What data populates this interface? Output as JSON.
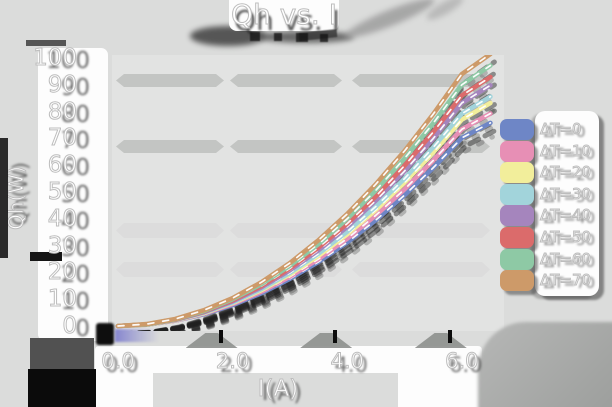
{
  "title": "Qh vs. I",
  "axes": {
    "y_label": "Qh(W)",
    "x_label": "I(A)",
    "y_ticks": [
      {
        "label": "100",
        "value": 100
      },
      {
        "label": "90",
        "value": 90
      },
      {
        "label": "80",
        "value": 80
      },
      {
        "label": "70",
        "value": 70
      },
      {
        "label": "60",
        "value": 60
      },
      {
        "label": "50",
        "value": 50
      },
      {
        "label": "40",
        "value": 40
      },
      {
        "label": "30",
        "value": 30
      },
      {
        "label": "20",
        "value": 20
      },
      {
        "label": "10",
        "value": 10
      },
      {
        "label": "0",
        "value": 0
      }
    ],
    "x_ticks": [
      {
        "label": "0.0",
        "value": 0
      },
      {
        "label": "2.0",
        "value": 2
      },
      {
        "label": "4.0",
        "value": 4
      },
      {
        "label": "6.0",
        "value": 6
      }
    ]
  },
  "legend": {
    "items": [
      {
        "label": "ΔT=0",
        "color": "#6e86c6"
      },
      {
        "label": "ΔT=10",
        "color": "#e78fb5"
      },
      {
        "label": "ΔT=20",
        "color": "#f2ee9b"
      },
      {
        "label": "ΔT=30",
        "color": "#a2d4db"
      },
      {
        "label": "ΔT=40",
        "color": "#a585bd"
      },
      {
        "label": "ΔT=50",
        "color": "#db6b6b"
      },
      {
        "label": "ΔT=60",
        "color": "#8ec9a5"
      },
      {
        "label": "ΔT=70",
        "color": "#cd9a69"
      }
    ]
  },
  "colors": {
    "background": "#dbdcdb",
    "plot_background": "#e2e3e2",
    "grid_band": "#c3c5c3",
    "grid_band_faint": "#d9dad9",
    "panel": "#fdfdfd",
    "text": "#ffffff",
    "text_outline": "#bdbdbd",
    "shadow": "#2e2e2e"
  },
  "chart_data": {
    "type": "line",
    "title": "Qh vs. I",
    "xlabel": "I(A)",
    "ylabel": "Qh(W)",
    "xlim": [
      0,
      6.9
    ],
    "ylim": [
      0,
      100
    ],
    "x_tick_values": [
      0.0,
      2.0,
      4.0,
      6.0
    ],
    "y_tick_values": [
      0,
      10,
      20,
      30,
      40,
      50,
      60,
      70,
      80,
      90,
      100
    ],
    "grid": "horizontal-bands",
    "legend_position": "right",
    "marker": "white-dash-on-line",
    "x": [
      0,
      0.5,
      1,
      1.5,
      2,
      2.5,
      3,
      3.5,
      4,
      4.5,
      5,
      5.5,
      6,
      6.5
    ],
    "series": [
      {
        "name": "ΔT=0",
        "color": "#6e86c6",
        "values": [
          0,
          0.5,
          2.0,
          4.4,
          7.8,
          12.2,
          17.6,
          23.9,
          31.2,
          39.5,
          48.8,
          59.0,
          70.2,
          75.8
        ]
      },
      {
        "name": "ΔT=10",
        "color": "#e78fb5",
        "values": [
          0,
          0.5,
          2.0,
          4.6,
          8.2,
          12.8,
          18.4,
          25.0,
          32.6,
          41.3,
          51.0,
          61.7,
          73.4,
          79.3
        ]
      },
      {
        "name": "ΔT=20",
        "color": "#f2ee9b",
        "values": [
          0,
          0.5,
          2.1,
          4.8,
          8.6,
          13.4,
          19.3,
          26.2,
          34.2,
          43.3,
          53.5,
          64.7,
          77.0,
          83.2
        ]
      },
      {
        "name": "ΔT=30",
        "color": "#a2d4db",
        "values": [
          0,
          0.6,
          2.2,
          5.0,
          8.8,
          13.8,
          19.8,
          27.0,
          35.2,
          44.6,
          55.0,
          66.6,
          79.2,
          85.6
        ]
      },
      {
        "name": "ΔT=40",
        "color": "#a585bd",
        "values": [
          0,
          0.6,
          2.3,
          5.2,
          9.2,
          14.4,
          20.8,
          28.3,
          37.0,
          46.8,
          57.8,
          69.9,
          83.2,
          89.8
        ]
      },
      {
        "name": "ΔT=50",
        "color": "#db6b6b",
        "values": [
          0,
          0.6,
          2.4,
          5.4,
          9.6,
          14.9,
          21.5,
          29.3,
          38.2,
          48.4,
          59.8,
          72.3,
          86.0,
          92.9
        ]
      },
      {
        "name": "ΔT=60",
        "color": "#8ec9a5",
        "values": [
          0,
          0.6,
          2.5,
          5.6,
          10.0,
          15.6,
          22.5,
          30.6,
          40.0,
          50.6,
          62.5,
          75.6,
          90.0,
          97.2
        ]
      },
      {
        "name": "ΔT=70",
        "color": "#cd9a69",
        "values": [
          0,
          0.7,
          2.6,
          5.9,
          10.4,
          16.3,
          23.5,
          32.0,
          41.8,
          52.9,
          65.3,
          79.0,
          94.0,
          101.5
        ]
      }
    ]
  }
}
